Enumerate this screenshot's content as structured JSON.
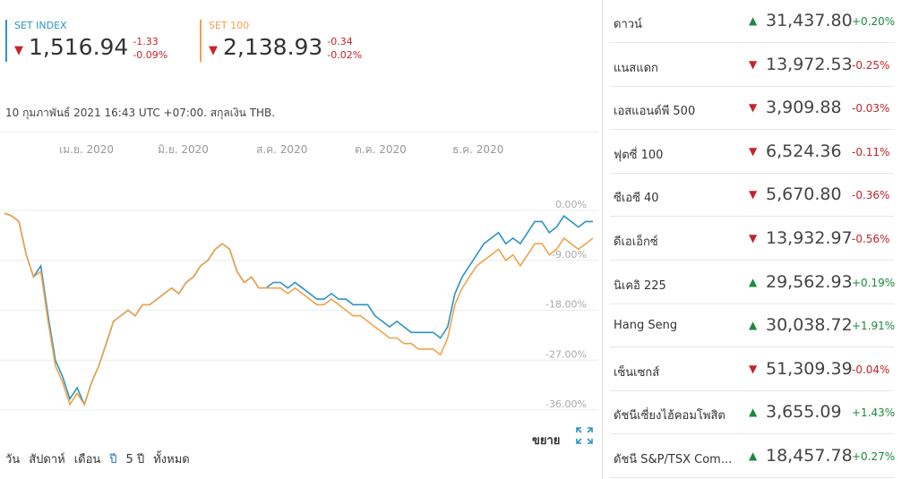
{
  "indices": [
    {
      "name": "SET INDEX",
      "value": "1,516.94",
      "change": "-1.33",
      "change_pct": "-0.09%",
      "direction": "down",
      "color": "#2a94c4"
    },
    {
      "name": "SET 100",
      "value": "2,138.93",
      "change": "-0.34",
      "change_pct": "-0.02%",
      "direction": "down",
      "color": "#f0a24a"
    }
  ],
  "timestamp": "10 กุมภาพันธ์ 2021 16:43 UTC +07:00. สกุลเงิน THB.",
  "chart": {
    "expand_label": "ขยาย",
    "icons": {
      "expand": "expand-icon"
    }
  },
  "chart_data": {
    "type": "line",
    "x_ticks": [
      "เม.ย. 2020",
      "มิ.ย. 2020",
      "ส.ค. 2020",
      "ต.ค. 2020",
      "ธ.ค. 2020"
    ],
    "y_ticks": [
      "0.00%",
      "-9.00%",
      "-18.00%",
      "-27.00%",
      "-36.00%"
    ],
    "ylim": [
      -36,
      0
    ],
    "grid": true,
    "series": [
      {
        "name": "SET INDEX",
        "color": "#2a94c4",
        "values": [
          -0.5,
          -1,
          -2,
          -8,
          -12,
          -10,
          -19,
          -27,
          -30,
          -34,
          -32,
          -35,
          -31,
          -28,
          -24,
          -20,
          -19,
          -18,
          -19,
          -17,
          -17,
          -16,
          -15,
          -14,
          -15,
          -13,
          -12,
          -10,
          -9,
          -7,
          -6,
          -7,
          -11,
          -13,
          -12,
          -14,
          -14,
          -13,
          -13,
          -14,
          -13,
          -14,
          -15,
          -16,
          -16,
          -15,
          -16,
          -16,
          -17,
          -17,
          -17,
          -19,
          -20,
          -21,
          -20,
          -21,
          -22,
          -22,
          -22,
          -22,
          -23,
          -21,
          -15,
          -12,
          -10,
          -8,
          -6,
          -5,
          -4,
          -6,
          -5,
          -6,
          -4,
          -2,
          -2,
          -4,
          -3,
          -1,
          -2,
          -3,
          -2,
          -2
        ]
      },
      {
        "name": "SET 100",
        "color": "#f0a24a",
        "values": [
          -0.5,
          -1,
          -2,
          -8,
          -12,
          -11,
          -20,
          -28,
          -31,
          -35,
          -33,
          -35,
          -31,
          -28,
          -24,
          -20,
          -19,
          -18,
          -19,
          -17,
          -17,
          -16,
          -15,
          -14,
          -15,
          -13,
          -12,
          -10,
          -9,
          -7,
          -6,
          -7,
          -11,
          -13,
          -12,
          -14,
          -14,
          -14,
          -14,
          -15,
          -14,
          -15,
          -16,
          -17,
          -17,
          -16,
          -17,
          -18,
          -19,
          -19,
          -20,
          -21,
          -22,
          -23,
          -23,
          -24,
          -24,
          -25,
          -25,
          -25,
          -26,
          -23,
          -17,
          -14,
          -12,
          -10,
          -9,
          -8,
          -7,
          -9,
          -8,
          -10,
          -8,
          -6,
          -6,
          -8,
          -7,
          -5,
          -6,
          -7,
          -6,
          -5
        ]
      }
    ]
  },
  "periods": [
    {
      "label": "วัน",
      "active": false
    },
    {
      "label": "สัปดาห์",
      "active": false
    },
    {
      "label": "เดือน",
      "active": false
    },
    {
      "label": "ปี",
      "active": true
    },
    {
      "label": "5 ปี",
      "active": false
    },
    {
      "label": "ทั้งหมด",
      "active": false
    }
  ],
  "markets": [
    {
      "name": "ดาวน์",
      "value": "31,437.80",
      "change_pct": "+0.20%",
      "direction": "up"
    },
    {
      "name": "แนสแดก",
      "value": "13,972.53",
      "change_pct": "-0.25%",
      "direction": "down"
    },
    {
      "name": "เอสแอนด์พี 500",
      "value": "3,909.88",
      "change_pct": "-0.03%",
      "direction": "down"
    },
    {
      "name": "ฟุตซี่ 100",
      "value": "6,524.36",
      "change_pct": "-0.11%",
      "direction": "down"
    },
    {
      "name": "ซีเอซี 40",
      "value": "5,670.80",
      "change_pct": "-0.36%",
      "direction": "down"
    },
    {
      "name": "ดีเอเอ็กซ์",
      "value": "13,932.97",
      "change_pct": "-0.56%",
      "direction": "down"
    },
    {
      "name": "นิเคอิ 225",
      "value": "29,562.93",
      "change_pct": "+0.19%",
      "direction": "up"
    },
    {
      "name": "Hang Seng",
      "value": "30,038.72",
      "change_pct": "+1.91%",
      "direction": "up"
    },
    {
      "name": "เซ็นเซกส์",
      "value": "51,309.39",
      "change_pct": "-0.04%",
      "direction": "down"
    },
    {
      "name": "ดัชนีเซี่ยงไฮ้คอมโพสิต",
      "value": "3,655.09",
      "change_pct": "+1.43%",
      "direction": "up"
    },
    {
      "name": "ดัชนี S&P/TSX Com...",
      "value": "18,457.78",
      "change_pct": "+0.27%",
      "direction": "up"
    }
  ]
}
